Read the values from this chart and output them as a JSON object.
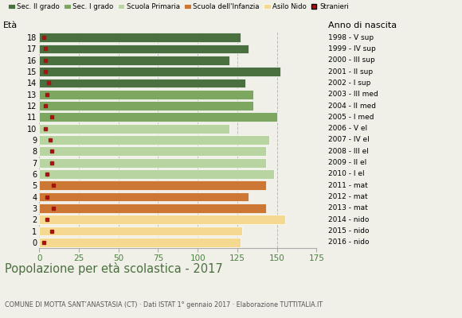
{
  "ages": [
    0,
    1,
    2,
    3,
    4,
    5,
    6,
    7,
    8,
    9,
    10,
    11,
    12,
    13,
    14,
    15,
    16,
    17,
    18
  ],
  "bar_values": [
    127,
    128,
    155,
    143,
    132,
    143,
    148,
    143,
    143,
    145,
    120,
    150,
    135,
    135,
    130,
    152,
    120,
    132,
    127
  ],
  "stranieri": [
    3,
    8,
    5,
    9,
    5,
    9,
    5,
    8,
    8,
    7,
    4,
    8,
    4,
    5,
    6,
    4,
    4,
    4,
    3
  ],
  "anno_nascita": [
    "2016 - nido",
    "2015 - nido",
    "2014 - nido",
    "2013 - mat",
    "2012 - mat",
    "2011 - mat",
    "2010 - I el",
    "2009 - II el",
    "2008 - III el",
    "2007 - IV el",
    "2006 - V el",
    "2005 - I med",
    "2004 - II med",
    "2003 - III med",
    "2002 - I sup",
    "2001 - II sup",
    "2000 - III sup",
    "1999 - IV sup",
    "1998 - V sup"
  ],
  "bar_colors": [
    "#f5d990",
    "#f5d990",
    "#f5d990",
    "#cc7733",
    "#cc7733",
    "#cc7733",
    "#b8d4a0",
    "#b8d4a0",
    "#b8d4a0",
    "#b8d4a0",
    "#b8d4a0",
    "#7da660",
    "#7da660",
    "#7da660",
    "#4a7040",
    "#4a7040",
    "#4a7040",
    "#4a7040",
    "#4a7040"
  ],
  "colors": {
    "sec_II": "#4a7040",
    "sec_I": "#7da660",
    "primaria": "#b8d4a0",
    "infanzia": "#cc7733",
    "nido": "#f5d990",
    "stranieri": "#aa1111"
  },
  "title": "Popolazione per età scolastica - 2017",
  "subtitle": "COMUNE DI MOTTA SANT’ANASTASIA (CT) · Dati ISTAT 1° gennaio 2017 · Elaborazione TUTTITALIA.IT",
  "label_eta": "Età",
  "label_anno": "Anno di nascita",
  "xlim": [
    0,
    175
  ],
  "xticks": [
    0,
    25,
    50,
    75,
    100,
    125,
    150,
    175
  ],
  "legend_labels": [
    "Sec. II grado",
    "Sec. I grado",
    "Scuola Primaria",
    "Scuola dell'Infanzia",
    "Asilo Nido",
    "Stranieri"
  ],
  "legend_colors": [
    "#4a7040",
    "#7da660",
    "#b8d4a0",
    "#cc7733",
    "#f5d990",
    "#aa1111"
  ],
  "background_color": "#f0f0e8",
  "grid_color": "#bbbbbb"
}
